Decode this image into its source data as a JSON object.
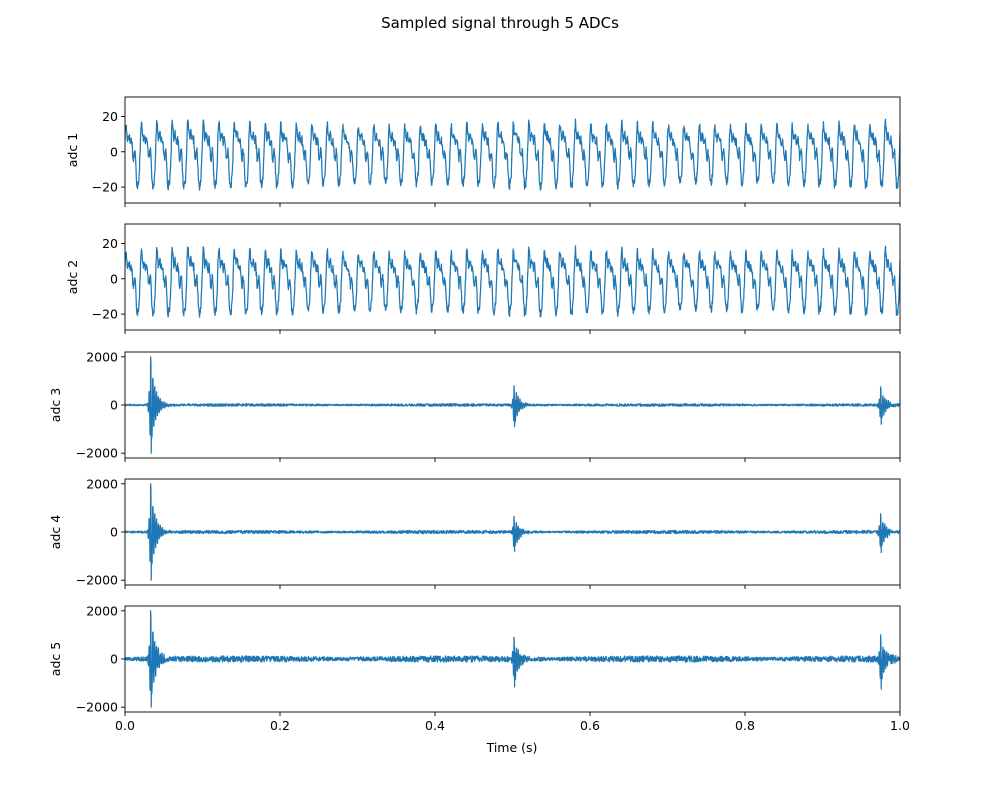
{
  "chart_data": {
    "type": "line",
    "title": "Sampled signal through 5 ADCs",
    "xlabel": "Time (s)",
    "xlim": [
      0.0,
      1.0
    ],
    "xticks": [
      0.0,
      0.2,
      0.4,
      0.6,
      0.8,
      1.0
    ],
    "xtick_labels": [
      "0.0",
      "0.2",
      "0.4",
      "0.6",
      "0.8",
      "1.0"
    ],
    "sharex": true,
    "grid": false,
    "line_color": "#1f77b4",
    "panels": [
      {
        "ylabel": "adc 1",
        "ylim": [
          -29,
          31
        ],
        "yticks": [
          20,
          0,
          -20
        ],
        "ytick_labels": [
          "20",
          "0",
          "−20"
        ],
        "signal": {
          "kind": "periodic",
          "base_freq_hz": 50,
          "amplitude_range": [
            -24,
            28
          ],
          "typical_peak": 22,
          "typical_trough": -22
        }
      },
      {
        "ylabel": "adc 2",
        "ylim": [
          -29,
          31
        ],
        "yticks": [
          20,
          0,
          -20
        ],
        "ytick_labels": [
          "20",
          "0",
          "−20"
        ],
        "signal": {
          "kind": "periodic",
          "base_freq_hz": 50,
          "amplitude_range": [
            -24,
            28
          ],
          "typical_peak": 22,
          "typical_trough": -22
        }
      },
      {
        "ylabel": "adc 3",
        "ylim": [
          -2200,
          2200
        ],
        "yticks": [
          2000,
          0,
          -2000
        ],
        "ytick_labels": [
          "2000",
          "0",
          "−2000"
        ],
        "signal": {
          "kind": "bursts",
          "bursts": [
            {
              "t": 0.033,
              "max": 2000,
              "min": -2000
            },
            {
              "t": 0.502,
              "max": 800,
              "min": -900
            },
            {
              "t": 0.975,
              "max": 750,
              "min": -800
            }
          ],
          "noise_level": 50
        }
      },
      {
        "ylabel": "adc 4",
        "ylim": [
          -2200,
          2200
        ],
        "yticks": [
          2000,
          0,
          -2000
        ],
        "ytick_labels": [
          "2000",
          "0",
          "−2000"
        ],
        "signal": {
          "kind": "bursts",
          "bursts": [
            {
              "t": 0.033,
              "max": 2000,
              "min": -2000
            },
            {
              "t": 0.502,
              "max": 650,
              "min": -800
            },
            {
              "t": 0.975,
              "max": 750,
              "min": -850
            }
          ],
          "noise_level": 60
        }
      },
      {
        "ylabel": "adc 5",
        "ylim": [
          -2200,
          2200
        ],
        "yticks": [
          2000,
          0,
          -2000
        ],
        "ytick_labels": [
          "2000",
          "0",
          "−2000"
        ],
        "signal": {
          "kind": "bursts",
          "bursts": [
            {
              "t": 0.033,
              "max": 2000,
              "min": -2000
            },
            {
              "t": 0.502,
              "max": 900,
              "min": -1150
            },
            {
              "t": 0.975,
              "max": 1000,
              "min": -1250
            }
          ],
          "noise_level": 120
        }
      }
    ]
  }
}
